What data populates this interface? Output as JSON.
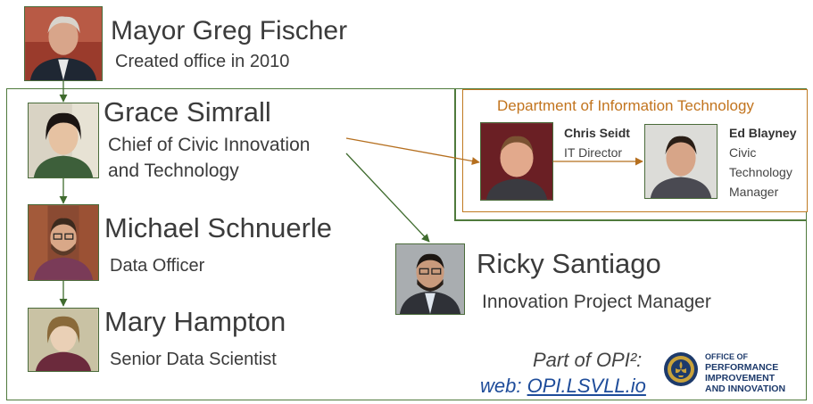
{
  "people": {
    "mayor": {
      "name": "Mayor Greg Fischer",
      "role": "Created office in 2010"
    },
    "grace": {
      "name": "Grace Simrall",
      "role_line1": "Chief of Civic Innovation",
      "role_line2": "and Technology"
    },
    "michael": {
      "name": "Michael Schnuerle",
      "role": "Data Officer"
    },
    "mary": {
      "name": "Mary Hampton",
      "role": "Senior Data Scientist"
    },
    "ricky": {
      "name": "Ricky Santiago",
      "role": "Innovation Project Manager"
    }
  },
  "dit": {
    "title": "Department of Information Technology",
    "chris": {
      "name": "Chris Seidt",
      "role": "IT Director"
    },
    "ed": {
      "name": "Ed Blayney",
      "role_line1": "Civic",
      "role_line2": "Technology",
      "role_line3": "Manager"
    }
  },
  "footer": {
    "part_of": "Part of OPI²:",
    "web_prefix": "web: ",
    "web_link": "OPI.LSVLL.io",
    "logo_line1": "OFFICE OF",
    "logo_line2": "PERFORMANCE",
    "logo_line3": "IMPROVEMENT",
    "logo_line4": "AND INNOVATION"
  },
  "colors": {
    "green": "#4f7a3c",
    "orange": "#c07a22",
    "link_blue": "#1e4c9a"
  }
}
